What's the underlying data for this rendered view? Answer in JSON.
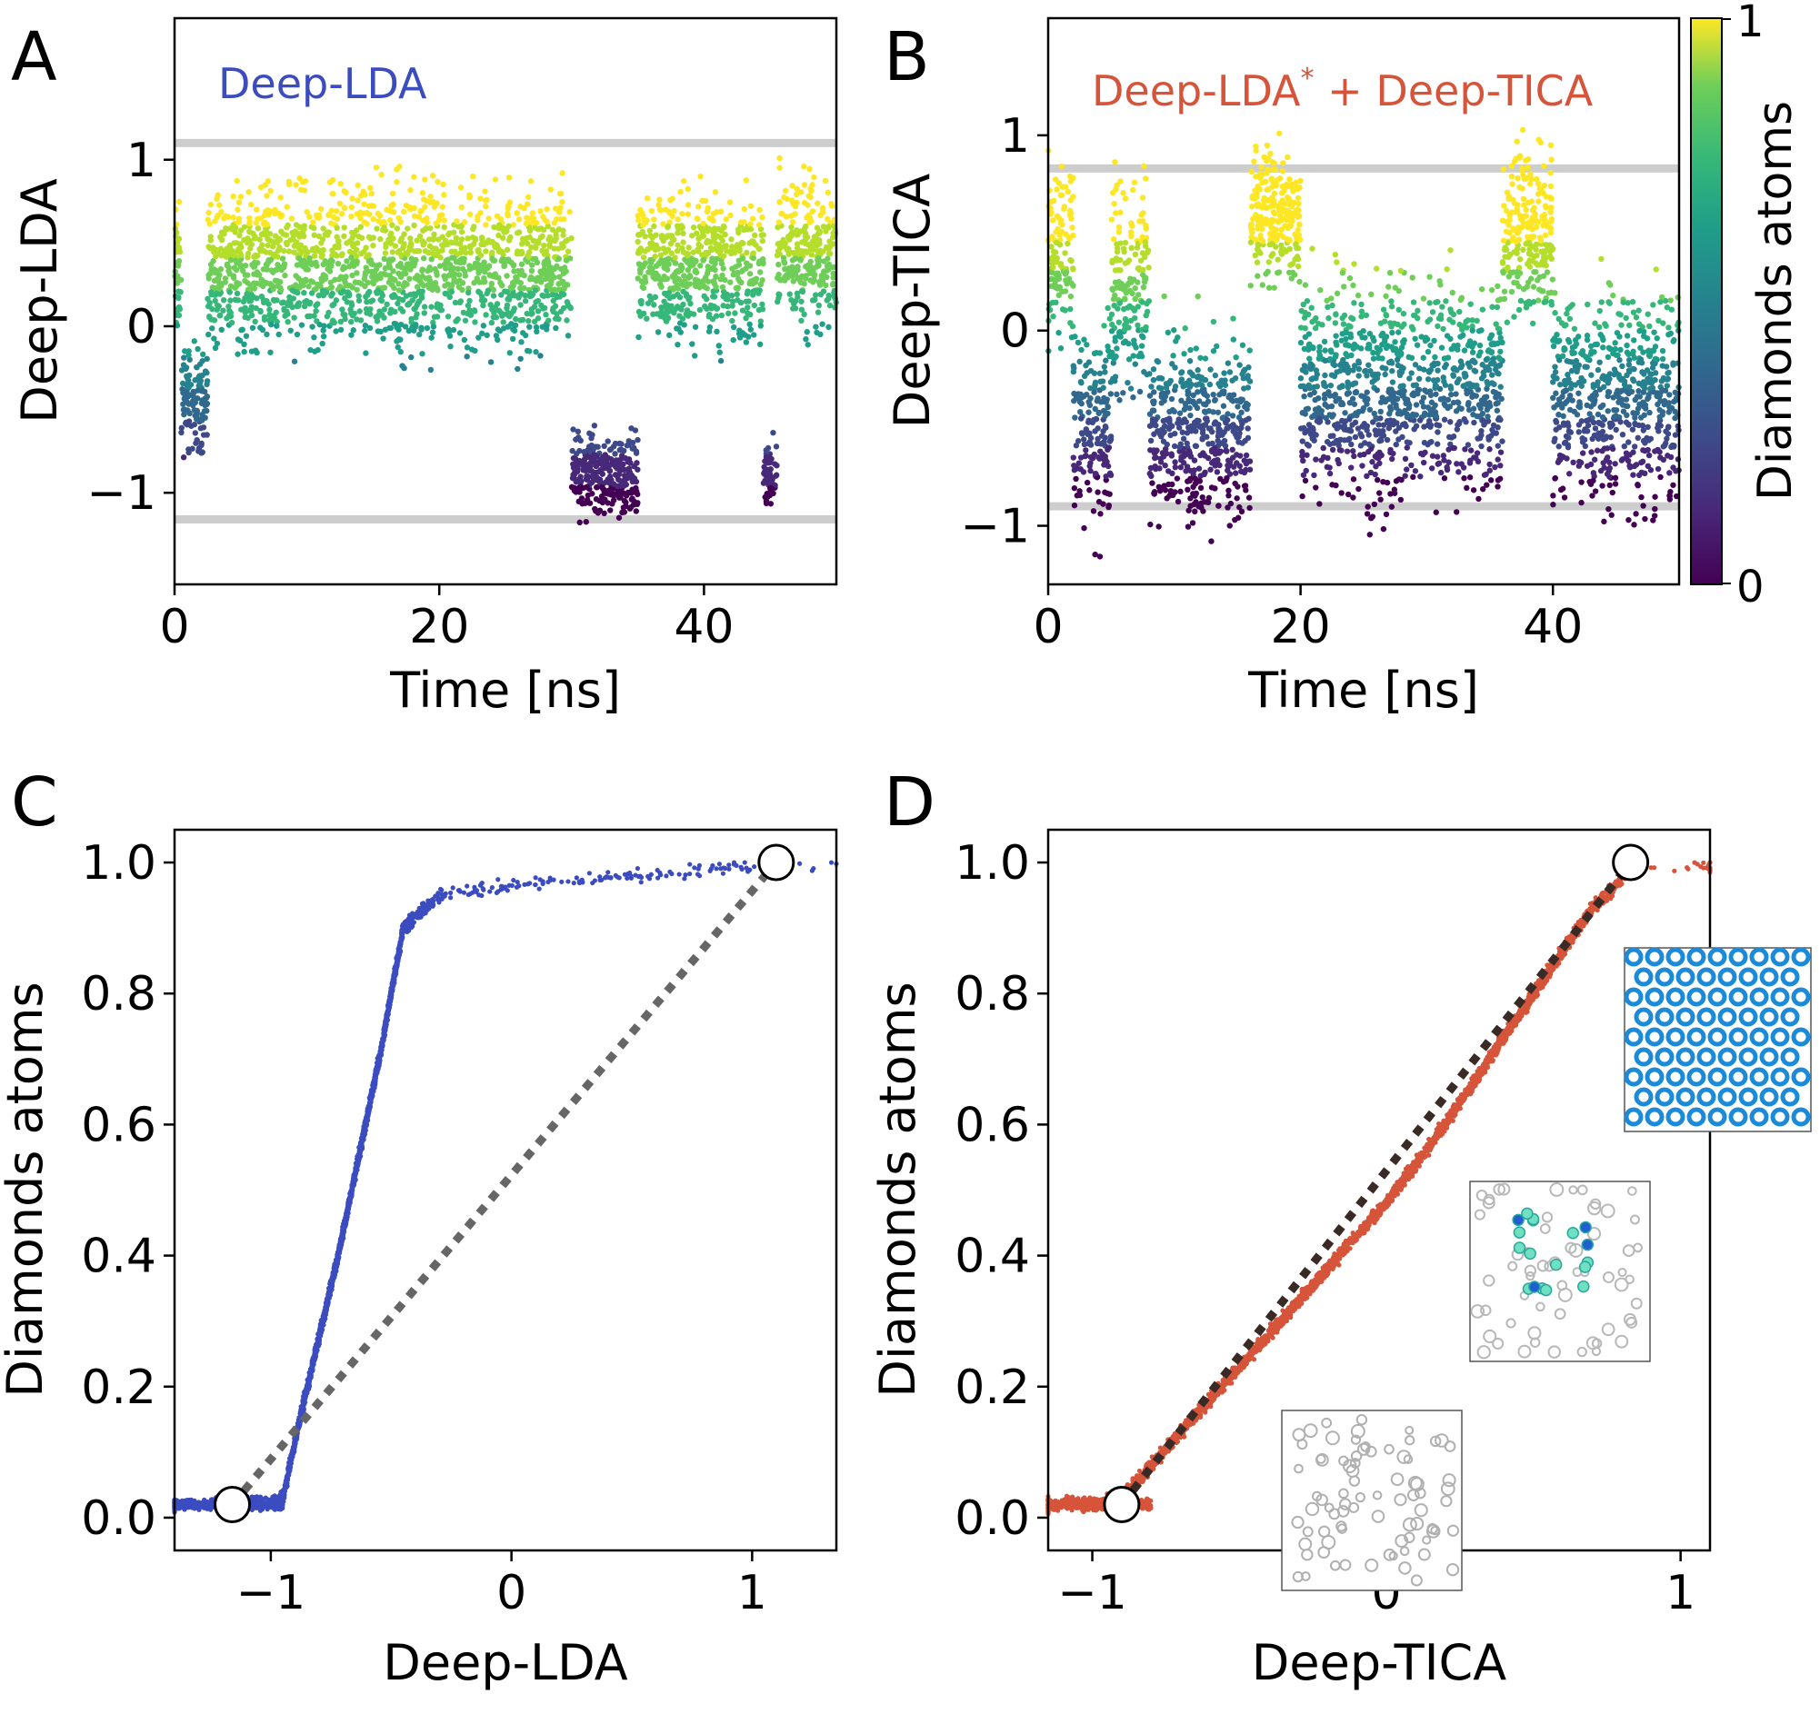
{
  "chart_data": [
    {
      "panel": "A",
      "type": "scatter",
      "legend_text": "Deep-LDA",
      "legend_color": "#3b4cc0",
      "title": "",
      "xlabel": "Time [ns]",
      "ylabel": "Deep-LDA",
      "xlim": [
        0,
        50
      ],
      "ylim": [
        -1.55,
        1.85
      ],
      "xticks": [
        0,
        20,
        40
      ],
      "xtick_labels": [
        "0",
        "20",
        "40"
      ],
      "yticks": [
        -1,
        0,
        1
      ],
      "ytick_labels": [
        "−1",
        "0",
        "1"
      ],
      "hlines": [
        1.1,
        -1.16
      ],
      "color_by": "Diamonds atoms",
      "states": [
        {
          "from": 0,
          "to": 0.5,
          "level": 0.3,
          "spread": 0.6
        },
        {
          "from": 0.5,
          "to": 2.5,
          "level": -0.45,
          "spread": 0.45
        },
        {
          "from": 2.5,
          "to": 30,
          "level": 0.35,
          "spread": 0.7
        },
        {
          "from": 30,
          "to": 35,
          "level": -0.9,
          "spread": 0.35
        },
        {
          "from": 35,
          "to": 44.5,
          "level": 0.35,
          "spread": 0.65
        },
        {
          "from": 44.5,
          "to": 45.5,
          "level": -0.9,
          "spread": 0.3
        },
        {
          "from": 45.5,
          "to": 50,
          "level": 0.45,
          "spread": 0.65
        }
      ]
    },
    {
      "panel": "B",
      "type": "scatter",
      "legend_text": "Deep-LDA",
      "legend_sup": "*",
      "legend_rest": " + Deep-TICA",
      "legend_color": "#d6543a",
      "title": "",
      "xlabel": "Time [ns]",
      "ylabel": "Deep-TICA",
      "xlim": [
        0,
        50
      ],
      "ylim": [
        -1.3,
        1.6
      ],
      "xticks": [
        0,
        20,
        40
      ],
      "xtick_labels": [
        "0",
        "20",
        "40"
      ],
      "yticks": [
        -1,
        0,
        1
      ],
      "ytick_labels": [
        "−1",
        "0",
        "1"
      ],
      "hlines": [
        0.83,
        -0.9
      ],
      "colorbar": {
        "label": "Diamonds atoms",
        "min_label": "0",
        "max_label": "1"
      },
      "states": [
        {
          "from": 0,
          "to": 2,
          "level": 0.4,
          "spread": 0.6
        },
        {
          "from": 2,
          "to": 5,
          "level": -0.5,
          "spread": 0.7
        },
        {
          "from": 5,
          "to": 8,
          "level": 0.2,
          "spread": 0.8
        },
        {
          "from": 8,
          "to": 16,
          "level": -0.5,
          "spread": 0.7
        },
        {
          "from": 16,
          "to": 20,
          "level": 0.6,
          "spread": 0.5
        },
        {
          "from": 20,
          "to": 36,
          "level": -0.3,
          "spread": 0.8
        },
        {
          "from": 36,
          "to": 40,
          "level": 0.5,
          "spread": 0.6
        },
        {
          "from": 40,
          "to": 50,
          "level": -0.35,
          "spread": 0.8
        }
      ]
    },
    {
      "panel": "C",
      "type": "scatter",
      "title": "",
      "xlabel": "Deep-LDA",
      "ylabel": "Diamonds atoms",
      "xlim": [
        -1.4,
        1.35
      ],
      "ylim": [
        -0.05,
        1.05
      ],
      "xticks": [
        -1,
        0,
        1
      ],
      "xtick_labels": [
        "−1",
        "0",
        "1"
      ],
      "yticks": [
        0.0,
        0.2,
        0.4,
        0.6,
        0.8,
        1.0
      ],
      "ytick_labels": [
        "0.0",
        "0.2",
        "0.4",
        "0.6",
        "0.8",
        "1.0"
      ],
      "color": "#3b4cc0",
      "band": {
        "x": [
          -1.4,
          -1.15,
          -0.95,
          -0.88,
          -0.72,
          -0.55,
          -0.45,
          -0.3,
          0.0,
          0.5,
          1.0,
          1.35
        ],
        "y": [
          0.02,
          0.02,
          0.03,
          0.15,
          0.4,
          0.7,
          0.9,
          0.95,
          0.965,
          0.98,
          0.995,
          1.0
        ]
      },
      "endpoints": [
        {
          "x": -1.16,
          "y": 0.02
        },
        {
          "x": 1.1,
          "y": 1.0
        }
      ]
    },
    {
      "panel": "D",
      "type": "scatter",
      "title": "",
      "xlabel": "Deep-TICA",
      "ylabel": "Diamonds atoms",
      "xlim": [
        -1.15,
        1.1
      ],
      "ylim": [
        -0.05,
        1.05
      ],
      "xticks": [
        -1,
        0,
        1
      ],
      "xtick_labels": [
        "−1",
        "0",
        "1"
      ],
      "yticks": [
        0.0,
        0.2,
        0.4,
        0.6,
        0.8,
        1.0
      ],
      "ytick_labels": [
        "0.0",
        "0.2",
        "0.4",
        "0.6",
        "0.8",
        "1.0"
      ],
      "color": "#d6543a",
      "band": {
        "x": [
          -1.15,
          -0.9,
          -0.8,
          -0.5,
          -0.2,
          0.0,
          0.2,
          0.5,
          0.7,
          0.83,
          1.1
        ],
        "y": [
          0.02,
          0.03,
          0.08,
          0.23,
          0.38,
          0.48,
          0.6,
          0.8,
          0.93,
          0.99,
          0.995
        ]
      },
      "endpoints": [
        {
          "x": -0.9,
          "y": 0.02
        },
        {
          "x": 0.83,
          "y": 1.0
        }
      ]
    }
  ],
  "panel_labels": [
    "A",
    "B",
    "C",
    "D"
  ]
}
